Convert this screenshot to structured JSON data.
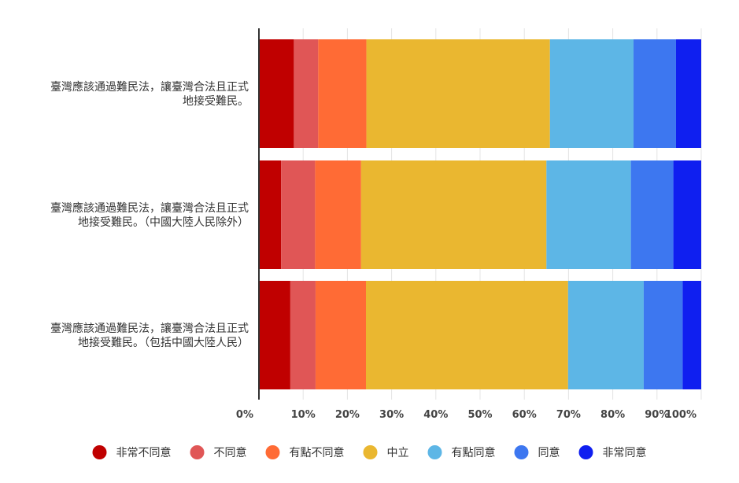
{
  "chart_data": {
    "type": "bar",
    "orientation": "horizontal",
    "stacked": "percent",
    "categories": [
      [
        "臺灣應該通過難民法，讓臺灣合法且正式",
        "地接受難民。"
      ],
      [
        "臺灣應該通過難民法，讓臺灣合法且正式",
        "地接受難民。（中國大陸人民除外）"
      ],
      [
        "臺灣應該通過難民法，讓臺灣合法且正式",
        "地接受難民。（包括中國大陸人民）"
      ]
    ],
    "series": [
      {
        "name": "非常不同意",
        "color": "#c00000",
        "values": [
          7.9,
          5.0,
          7.1
        ]
      },
      {
        "name": "不同意",
        "color": "#e05656",
        "values": [
          5.5,
          7.7,
          5.7
        ]
      },
      {
        "name": "有點不同意",
        "color": "#ff6b35",
        "values": [
          10.9,
          10.4,
          11.4
        ]
      },
      {
        "name": "中立",
        "color": "#eab730",
        "values": [
          41.5,
          41.9,
          45.7
        ]
      },
      {
        "name": "有點同意",
        "color": "#5db6e6",
        "values": [
          18.9,
          19.1,
          17.1
        ]
      },
      {
        "name": "同意",
        "color": "#3d77f0",
        "values": [
          9.6,
          9.6,
          8.8
        ]
      },
      {
        "name": "非常同意",
        "color": "#0f1ff0",
        "values": [
          5.7,
          6.3,
          4.2
        ]
      }
    ],
    "xticks": [
      "0%",
      "10%",
      "20%",
      "30%",
      "40%",
      "50%",
      "60%",
      "70%",
      "80%",
      "90%",
      "100%"
    ],
    "xlim": [
      0,
      100
    ],
    "grid": true,
    "legend_position": "bottom"
  }
}
